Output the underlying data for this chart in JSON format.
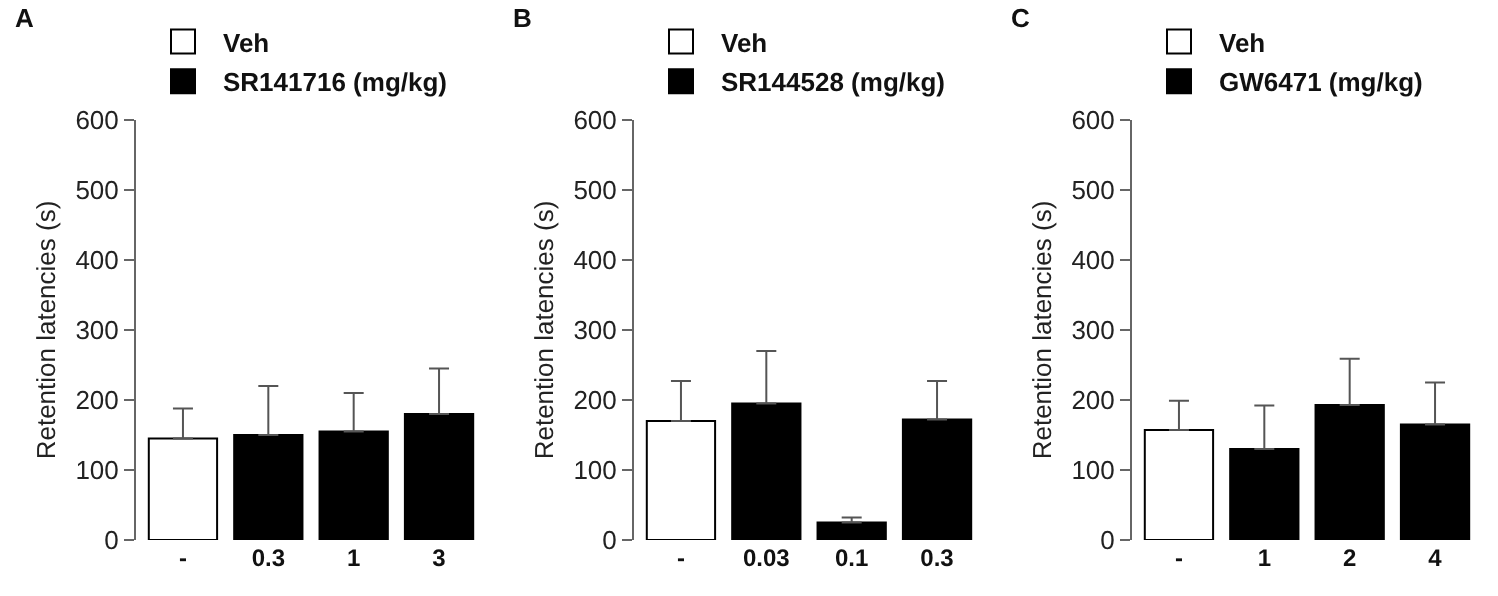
{
  "chart_data": [
    {
      "type": "bar",
      "title": "A",
      "ylabel": "Retention latencies (s)",
      "categories": [
        "-",
        "0.3",
        "1",
        "3"
      ],
      "ylim": [
        0,
        600
      ],
      "yticks": [
        0,
        100,
        200,
        300,
        400,
        500,
        600
      ],
      "grid": false,
      "legend": "top left",
      "series": [
        {
          "name": "Veh",
          "color": "#ffffff",
          "values": [
            145,
            null,
            null,
            null
          ],
          "errors": [
            [
              145,
              188
            ],
            null,
            null,
            null
          ]
        },
        {
          "name": "SR141716 (mg/kg)",
          "color": "#000000",
          "values": [
            null,
            150,
            155,
            180
          ],
          "errors": [
            null,
            [
              150,
              220
            ],
            [
              155,
              210
            ],
            [
              180,
              245
            ]
          ]
        }
      ]
    },
    {
      "type": "bar",
      "title": "B",
      "ylabel": "Retention latencies (s)",
      "categories": [
        "-",
        "0.03",
        "0.1",
        "0.3"
      ],
      "ylim": [
        0,
        600
      ],
      "yticks": [
        0,
        100,
        200,
        300,
        400,
        500,
        600
      ],
      "grid": false,
      "legend": "top left",
      "series": [
        {
          "name": "Veh",
          "color": "#ffffff",
          "values": [
            170,
            null,
            null,
            null
          ],
          "errors": [
            [
              170,
              227
            ],
            null,
            null,
            null
          ]
        },
        {
          "name": "SR144528 (mg/kg)",
          "color": "#000000",
          "values": [
            null,
            195,
            25,
            172
          ],
          "errors": [
            null,
            [
              195,
              270
            ],
            [
              25,
              32
            ],
            [
              172,
              227
            ]
          ]
        }
      ]
    },
    {
      "type": "bar",
      "title": "C",
      "ylabel": "Retention latencies (s)",
      "categories": [
        "-",
        "1",
        "2",
        "4"
      ],
      "ylim": [
        0,
        600
      ],
      "yticks": [
        0,
        100,
        200,
        300,
        400,
        500,
        600
      ],
      "grid": false,
      "legend": "top left",
      "series": [
        {
          "name": "Veh",
          "color": "#ffffff",
          "values": [
            157,
            null,
            null,
            null
          ],
          "errors": [
            [
              157,
              199
            ],
            null,
            null,
            null
          ]
        },
        {
          "name": "GW6471 (mg/kg)",
          "color": "#000000",
          "values": [
            null,
            130,
            193,
            165
          ],
          "errors": [
            null,
            [
              130,
              192
            ],
            [
              193,
              259
            ],
            [
              165,
              225
            ]
          ]
        }
      ]
    }
  ]
}
